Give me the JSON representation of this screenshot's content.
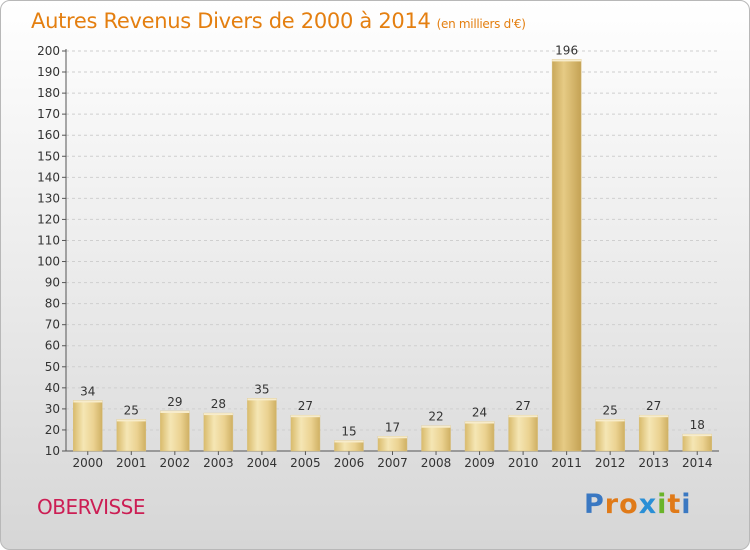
{
  "header": {
    "title": "Autres Revenus Divers de 2000 à 2014",
    "unit": "(en milliers d'€)"
  },
  "footer": {
    "commune": "OBERVISSE",
    "brand": "Proxiti",
    "brand_letters": [
      "P",
      "r",
      "o",
      "x",
      "i",
      "t",
      "i"
    ],
    "brand_colors": [
      "#3a78c2",
      "#e07a18",
      "#e07a18",
      "#2a8fd6",
      "#6ab42a",
      "#e07a18",
      "#3a78c2"
    ]
  },
  "colors": {
    "title": "#e47f10",
    "commune": "#cc1e54",
    "bar": "#e8cf8a",
    "bar_highlight": "#f3e3ad",
    "bar_shadow": "#c7a95c",
    "grid": "#cfcfcf"
  },
  "chart_data": {
    "type": "bar",
    "categories": [
      "2000",
      "2001",
      "2002",
      "2003",
      "2004",
      "2005",
      "2006",
      "2007",
      "2008",
      "2009",
      "2010",
      "2011",
      "2012",
      "2013",
      "2014"
    ],
    "values": [
      34,
      25,
      29,
      28,
      35,
      27,
      15,
      17,
      22,
      24,
      27,
      196,
      25,
      27,
      18
    ],
    "ylim": [
      10,
      200
    ],
    "yticks": [
      10,
      20,
      30,
      40,
      50,
      60,
      70,
      80,
      90,
      100,
      110,
      120,
      130,
      140,
      150,
      160,
      170,
      180,
      190,
      200
    ],
    "grid": true,
    "legend": "none"
  }
}
